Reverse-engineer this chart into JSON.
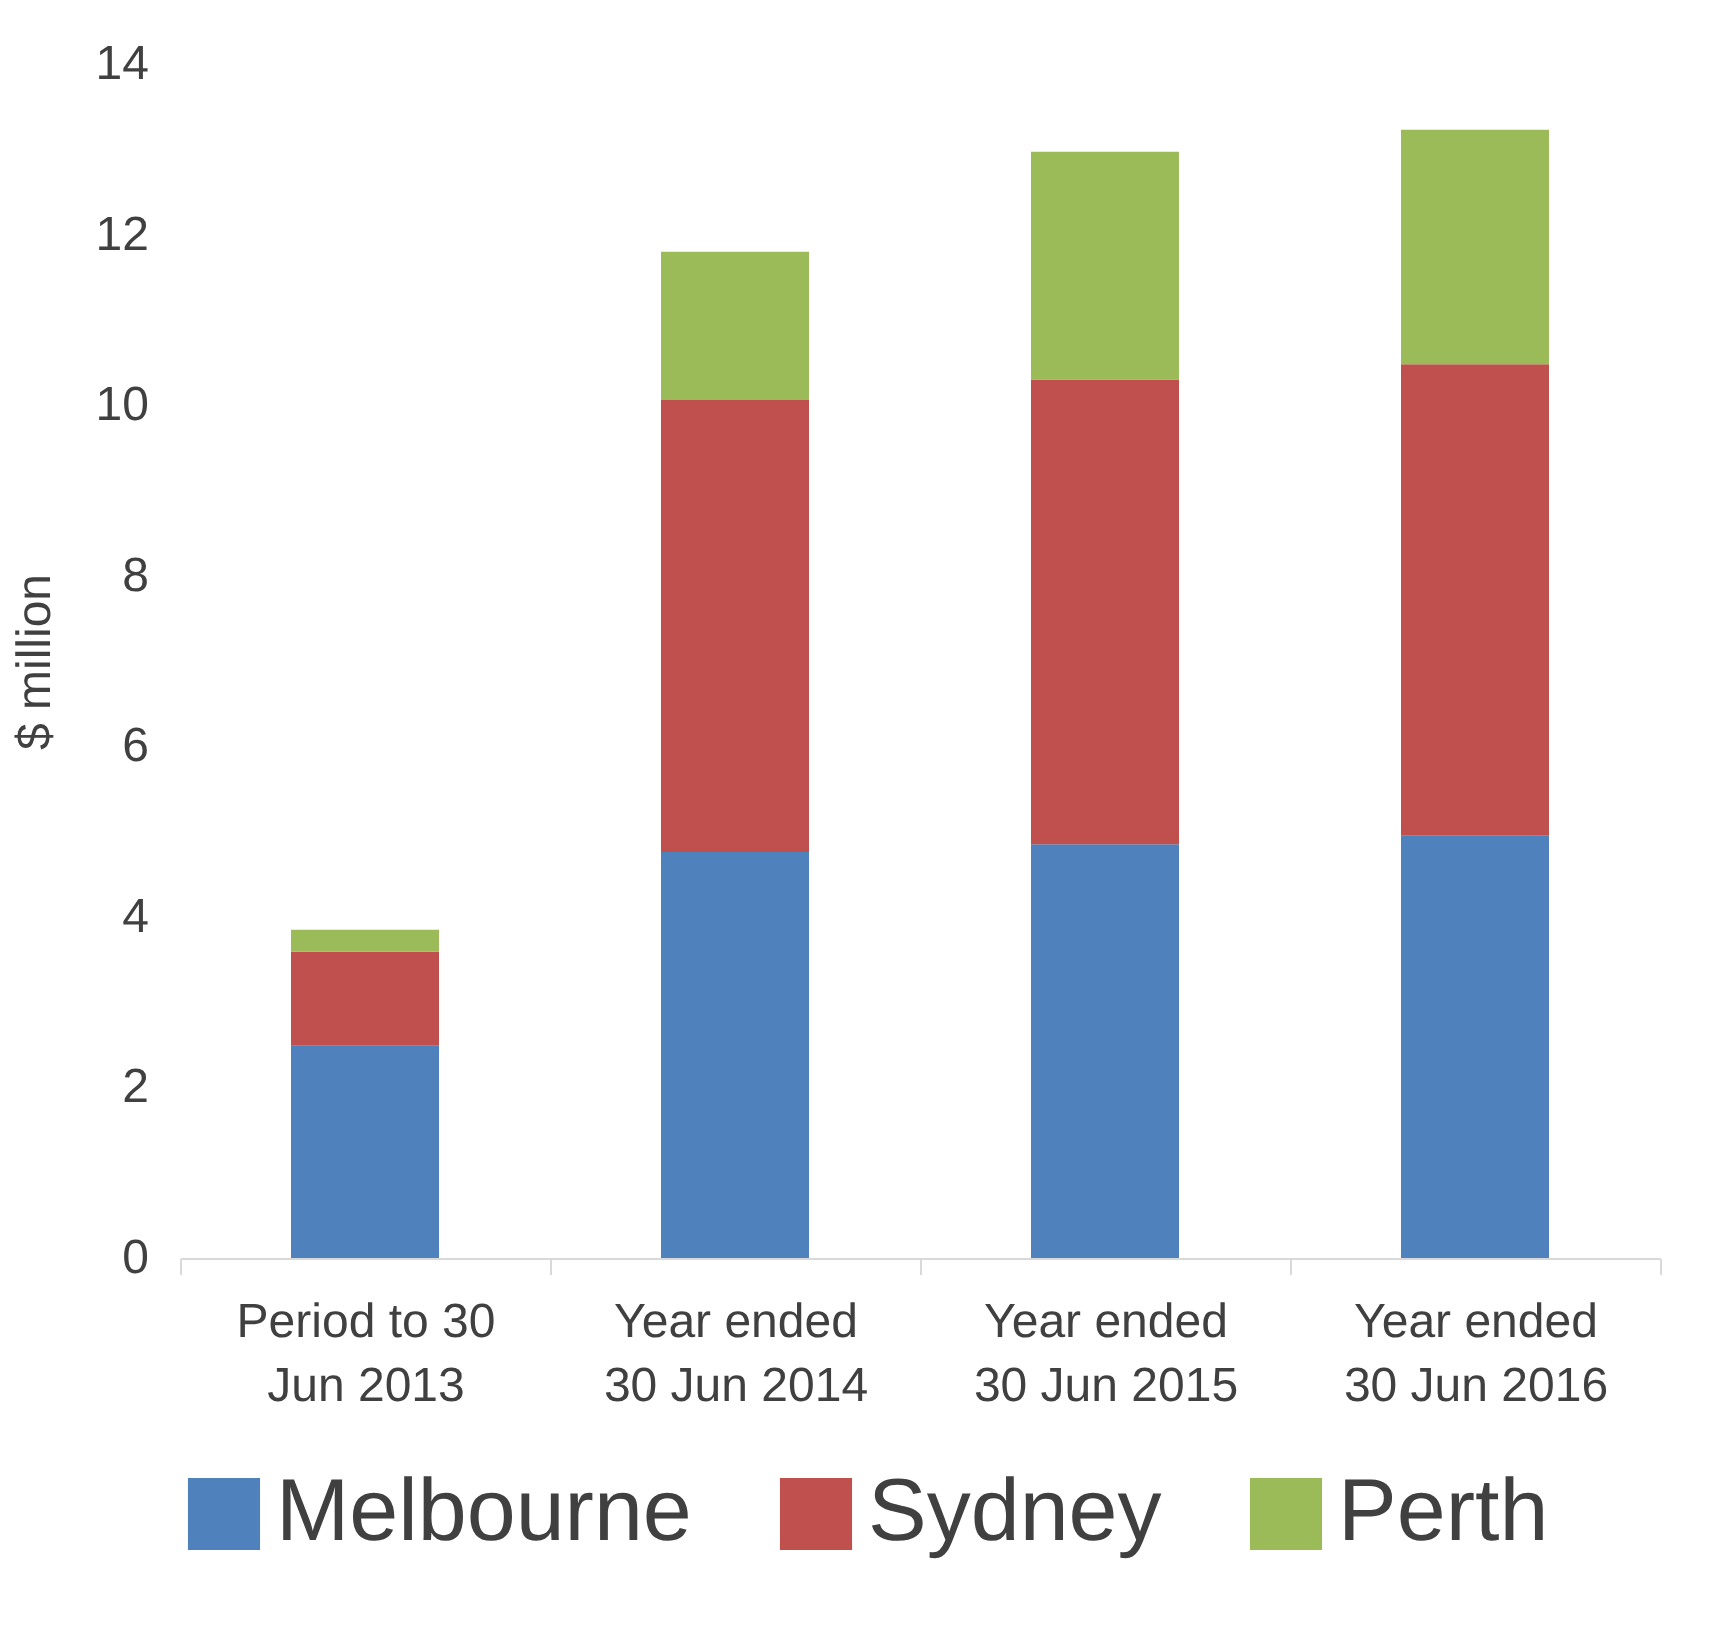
{
  "chart_data": {
    "type": "bar",
    "ylabel": "$ million",
    "categories": [
      "Period to 30 Jun 2013",
      "Year ended 30 Jun 2014",
      "Year ended 30 Jun 2015",
      "Year ended 30 Jun 2016"
    ],
    "series": [
      {
        "name": "Melbourne",
        "color": "#4f81bd",
        "values": [
          2.49,
          4.76,
          4.85,
          4.95
        ]
      },
      {
        "name": "Sydney",
        "color": "#c0504d",
        "values": [
          1.1,
          5.3,
          5.45,
          5.53
        ]
      },
      {
        "name": "Perth",
        "color": "#9bbb59",
        "values": [
          0.26,
          1.74,
          2.67,
          2.75
        ]
      }
    ],
    "stacked": true,
    "ylim": [
      0,
      14
    ],
    "yticks": [
      0,
      2,
      4,
      6,
      8,
      10,
      12,
      14
    ],
    "grid": false,
    "legend": "bottom"
  }
}
